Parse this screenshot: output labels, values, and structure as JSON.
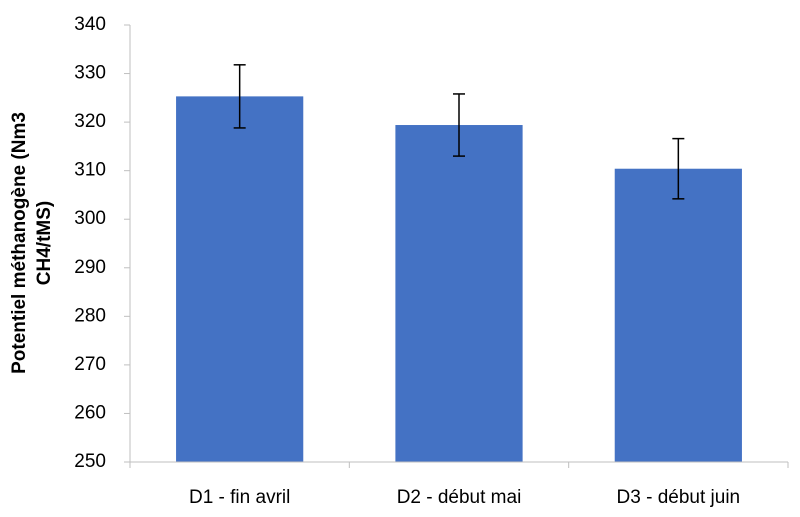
{
  "chart_data": {
    "type": "bar",
    "ylabel": [
      "Potentiel méthanogène (Nm3",
      "CH4/tMS)"
    ],
    "categories": [
      "D1 - fin avril",
      "D2 - début mai",
      "D3 - début juin"
    ],
    "values": [
      325.3,
      319.4,
      310.4
    ],
    "errors": [
      6.5,
      6.4,
      6.2
    ],
    "color": "#4472c4",
    "ylim": [
      250,
      340
    ],
    "yticks": [
      250,
      260,
      270,
      280,
      290,
      300,
      310,
      320,
      330,
      340
    ],
    "grid": false
  }
}
